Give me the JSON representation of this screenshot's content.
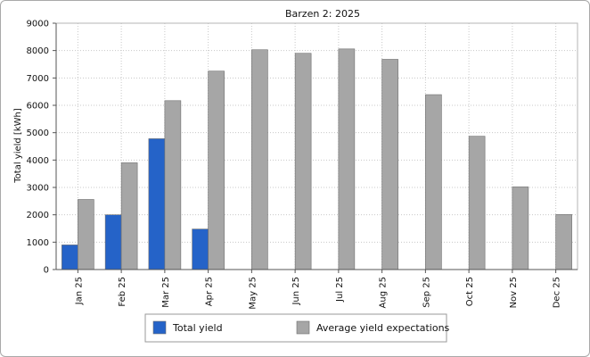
{
  "chart_data": {
    "type": "bar",
    "title": "Barzen 2: 2025",
    "xlabel": "",
    "ylabel": "Total yield [kWh]",
    "ylim": [
      0,
      9000
    ],
    "yticks": [
      0,
      1000,
      2000,
      3000,
      4000,
      5000,
      6000,
      7000,
      8000,
      9000
    ],
    "categories": [
      "Jan 25",
      "Feb 25",
      "Mar 25",
      "Apr 25",
      "May 25",
      "Jun 25",
      "Jul 25",
      "Aug 25",
      "Sep 25",
      "Oct 25",
      "Nov 25",
      "Dec 25"
    ],
    "series": [
      {
        "name": "Total yield",
        "color": "#2563c8",
        "values": [
          900,
          2000,
          4780,
          1480,
          null,
          null,
          null,
          null,
          null,
          null,
          null,
          null
        ]
      },
      {
        "name": "Average yield expectations",
        "color": "#a6a6a6",
        "values": [
          2560,
          3900,
          6170,
          7250,
          8030,
          7900,
          8060,
          7680,
          6390,
          4870,
          3020,
          2010
        ]
      }
    ],
    "grid": true,
    "legend": "bottom"
  }
}
